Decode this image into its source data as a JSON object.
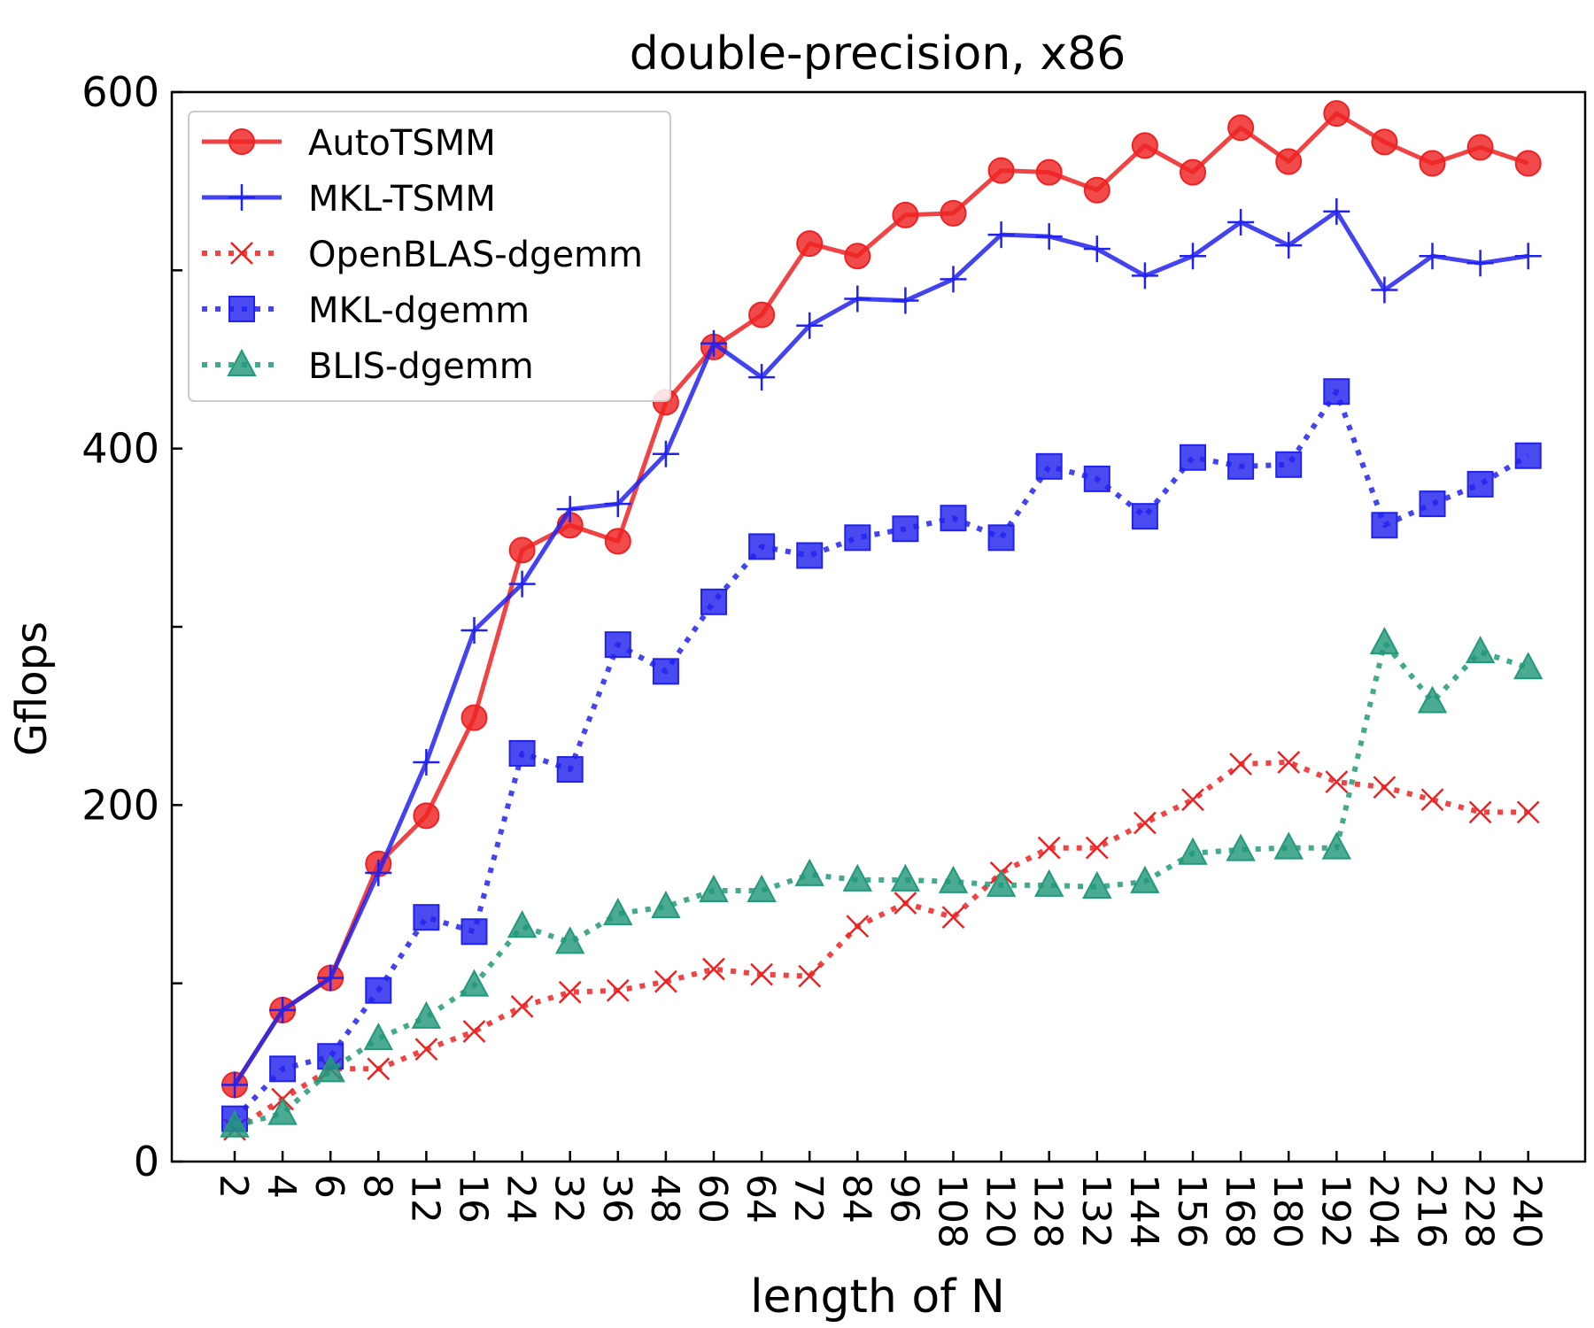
{
  "chart_data": {
    "type": "line",
    "title": "double-precision, x86",
    "xlabel": "length of N",
    "ylabel": "Gflops",
    "ylim": [
      0,
      600
    ],
    "yticks": [
      0,
      100,
      200,
      300,
      400,
      500,
      600
    ],
    "ytick_labels": [
      "0",
      "",
      "200",
      "",
      "400",
      "",
      "600"
    ],
    "categories": [
      "2",
      "4",
      "6",
      "8",
      "12",
      "16",
      "24",
      "32",
      "36",
      "48",
      "60",
      "64",
      "72",
      "84",
      "96",
      "108",
      "120",
      "128",
      "132",
      "144",
      "156",
      "168",
      "180",
      "192",
      "204",
      "216",
      "228",
      "240"
    ],
    "legend_position": "top-left",
    "grid": false,
    "series": [
      {
        "name": "AutoTSMM",
        "color": "#ee2222",
        "line": "solid",
        "marker": "circle",
        "values": [
          43,
          85,
          103,
          167,
          194,
          249,
          343,
          357,
          348,
          426,
          457,
          475,
          515,
          508,
          531,
          532,
          556,
          555,
          545,
          570,
          555,
          580,
          561,
          588,
          572,
          560,
          569,
          560
        ]
      },
      {
        "name": "MKL-TSMM",
        "color": "#2222ee",
        "line": "solid",
        "marker": "plus",
        "values": [
          43,
          85,
          103,
          162,
          224,
          298,
          324,
          366,
          369,
          397,
          459,
          440,
          469,
          484,
          483,
          495,
          520,
          519,
          512,
          497,
          508,
          527,
          514,
          533,
          489,
          508,
          504,
          508
        ]
      },
      {
        "name": "OpenBLAS-dgemm",
        "color": "#ee2222",
        "line": "dotted",
        "marker": "x",
        "values": [
          18,
          35,
          52,
          52,
          63,
          73,
          87,
          95,
          96,
          101,
          108,
          105,
          104,
          132,
          145,
          137,
          162,
          176,
          176,
          190,
          203,
          223,
          224,
          213,
          210,
          203,
          196,
          196
        ]
      },
      {
        "name": "MKL-dgemm",
        "color": "#2222ee",
        "line": "dotted",
        "marker": "square",
        "values": [
          24,
          52,
          59,
          96,
          137,
          129,
          229,
          220,
          290,
          275,
          314,
          345,
          340,
          350,
          355,
          361,
          350,
          390,
          383,
          362,
          395,
          390,
          391,
          432,
          357,
          369,
          380,
          396
        ]
      },
      {
        "name": "BLIS-dgemm",
        "color": "#22997a",
        "line": "dotted",
        "marker": "triangle",
        "values": [
          20,
          27,
          51,
          69,
          81,
          99,
          132,
          123,
          139,
          143,
          152,
          152,
          161,
          158,
          158,
          157,
          155,
          155,
          154,
          157,
          173,
          175,
          176,
          176,
          291,
          258,
          286,
          277
        ]
      }
    ]
  }
}
